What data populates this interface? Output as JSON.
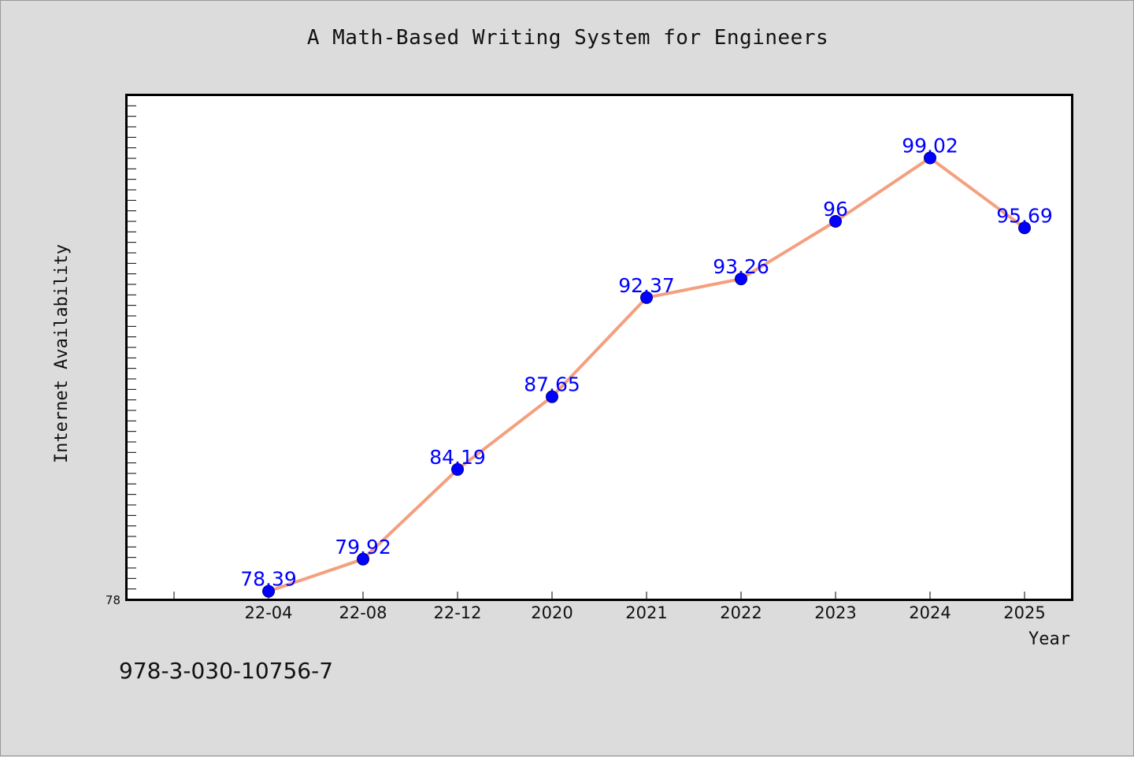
{
  "chart_data": {
    "type": "line",
    "title": "A Math-Based Writing System for Engineers",
    "xlabel": "Year",
    "ylabel": "Internet Availability",
    "categories": [
      "22-04",
      "22-08",
      "22-12",
      "2020",
      "2021",
      "2022",
      "2023",
      "2024",
      "2025"
    ],
    "series": [
      {
        "values": [
          78.39,
          79.92,
          84.19,
          87.65,
          92.37,
          93.26,
          96,
          99.02,
          95.69
        ]
      }
    ],
    "data_labels": [
      "78.39",
      "79.92",
      "84.19",
      "87.65",
      "92.37",
      "93.26",
      "96",
      "99.02",
      "95.69"
    ],
    "ylim": [
      78,
      102
    ],
    "y_tick_label": "78",
    "grid": false,
    "line_color": "#f4a07e",
    "marker_color": "#0000ff",
    "label_color": "#0000ff"
  },
  "footer": {
    "isbn": "978-3-030-10756-7"
  }
}
